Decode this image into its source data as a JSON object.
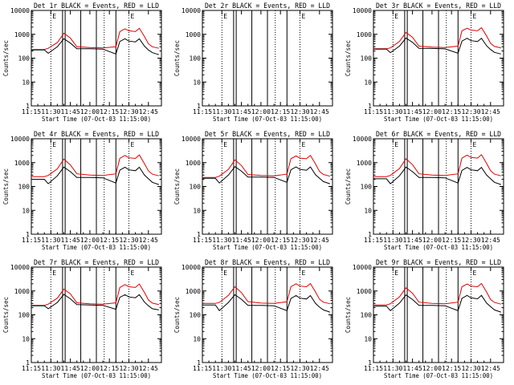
{
  "colors": {
    "events": "#000000",
    "lld": "#e00000",
    "axes": "#000000",
    "background": "#ffffff"
  },
  "chart_data": [
    {
      "type": "line",
      "title": "Det 1r BLACK = Events, RED = LLD",
      "xlabel": "Start Time (07-Oct-03 11:15:00)",
      "ylabel": "Counts/sec",
      "yscale": "log",
      "xlim": [
        "11:15",
        "12:55"
      ],
      "ylim": [
        1,
        10000
      ],
      "x_ticks": [
        "11:15",
        "11:30",
        "11:45",
        "12:00",
        "12:15",
        "12:30",
        "12:45"
      ],
      "y_ticks": [
        "1",
        "10",
        "100",
        "1000",
        "10000"
      ],
      "dotted_lines": [
        "11:30",
        "12:11",
        "12:30"
      ],
      "solid_lines": [
        "11:39",
        "11:41",
        "11:53",
        "12:05",
        "12:20"
      ],
      "flag_label": "E",
      "x": [
        "11:15",
        "11:25",
        "11:28",
        "11:35",
        "11:40",
        "11:45",
        "11:50",
        "12:00",
        "12:10",
        "12:20",
        "12:23",
        "12:27",
        "12:30",
        "12:35",
        "12:38",
        "12:42",
        "12:45",
        "12:48",
        "12:53"
      ],
      "series": [
        {
          "name": "LLD",
          "values": [
            230,
            230,
            260,
            450,
            1100,
            700,
            300,
            280,
            270,
            300,
            1300,
            1700,
            1400,
            1300,
            1800,
            800,
            400,
            300,
            260
          ]
        },
        {
          "name": "Events",
          "values": [
            220,
            220,
            160,
            300,
            650,
            430,
            250,
            250,
            240,
            150,
            500,
            650,
            520,
            480,
            650,
            320,
            220,
            170,
            140
          ]
        }
      ]
    },
    {
      "type": "line",
      "title": "Det 2r BLACK = Events, RED = LLD",
      "xlabel": "Start Time (07-Oct-03 11:15:00)",
      "ylabel": "Counts/sec",
      "yscale": "log",
      "xlim": [
        "11:15",
        "12:55"
      ],
      "ylim": [
        1,
        10000
      ],
      "x_ticks": [
        "11:15",
        "11:30",
        "11:45",
        "12:00",
        "12:15",
        "12:30",
        "12:45"
      ],
      "y_ticks": [
        "1",
        "10",
        "100",
        "1000",
        "10000"
      ],
      "dotted_lines": [
        "11:30",
        "12:11",
        "12:30"
      ],
      "solid_lines": [
        "11:39",
        "11:41",
        "11:53",
        "12:05",
        "12:20"
      ],
      "flag_label": "E",
      "x": [],
      "series": []
    },
    {
      "type": "line",
      "title": "Det 3r BLACK = Events, RED = LLD",
      "xlabel": "Start Time (07-Oct-03 11:15:00)",
      "ylabel": "Counts/sec",
      "yscale": "log",
      "xlim": [
        "11:15",
        "12:55"
      ],
      "ylim": [
        1,
        10000
      ],
      "x_ticks": [
        "11:15",
        "11:30",
        "11:45",
        "12:00",
        "12:15",
        "12:30",
        "12:45"
      ],
      "y_ticks": [
        "1",
        "10",
        "100",
        "1000",
        "10000"
      ],
      "dotted_lines": [
        "11:30",
        "12:11",
        "12:30"
      ],
      "solid_lines": [
        "11:39",
        "11:41",
        "11:53",
        "12:05",
        "12:20"
      ],
      "flag_label": "E",
      "x": [
        "11:15",
        "11:25",
        "11:28",
        "11:35",
        "11:40",
        "11:45",
        "11:50",
        "12:00",
        "12:10",
        "12:20",
        "12:23",
        "12:27",
        "12:30",
        "12:35",
        "12:38",
        "12:42",
        "12:45",
        "12:48",
        "12:53"
      ],
      "series": [
        {
          "name": "LLD",
          "values": [
            250,
            250,
            270,
            500,
            1200,
            750,
            320,
            290,
            280,
            320,
            1400,
            1800,
            1500,
            1400,
            1900,
            850,
            420,
            310,
            270
          ]
        },
        {
          "name": "Events",
          "values": [
            240,
            240,
            170,
            320,
            700,
            460,
            260,
            255,
            245,
            160,
            520,
            680,
            540,
            500,
            680,
            330,
            230,
            175,
            150
          ]
        }
      ]
    },
    {
      "type": "line",
      "title": "Det 4r BLACK = Events, RED = LLD",
      "xlabel": "Start Time (07-Oct-03 11:15:00)",
      "ylabel": "Counts/sec",
      "yscale": "log",
      "xlim": [
        "11:15",
        "12:55"
      ],
      "ylim": [
        1,
        10000
      ],
      "x_ticks": [
        "11:15",
        "11:30",
        "11:45",
        "12:00",
        "12:15",
        "12:30",
        "12:45"
      ],
      "y_ticks": [
        "1",
        "10",
        "100",
        "1000",
        "10000"
      ],
      "dotted_lines": [
        "11:30",
        "12:11",
        "12:30"
      ],
      "solid_lines": [
        "11:39",
        "11:41",
        "11:53",
        "12:05",
        "12:20"
      ],
      "flag_label": "E",
      "x": [
        "11:15",
        "11:25",
        "11:28",
        "11:35",
        "11:40",
        "11:45",
        "11:50",
        "12:00",
        "12:10",
        "12:20",
        "12:23",
        "12:27",
        "12:30",
        "12:35",
        "12:38",
        "12:42",
        "12:45",
        "12:48",
        "12:53"
      ],
      "series": [
        {
          "name": "LLD",
          "values": [
            260,
            260,
            290,
            550,
            1400,
            800,
            340,
            300,
            290,
            340,
            1500,
            2000,
            1600,
            1500,
            2100,
            900,
            450,
            330,
            280
          ]
        },
        {
          "name": "Events",
          "values": [
            200,
            200,
            130,
            280,
            650,
            420,
            240,
            240,
            230,
            140,
            480,
            640,
            500,
            460,
            640,
            300,
            210,
            150,
            120
          ]
        }
      ]
    },
    {
      "type": "line",
      "title": "Det 5r BLACK = Events, RED = LLD",
      "xlabel": "Start Time (07-Oct-03 11:15:00)",
      "ylabel": "Counts/sec",
      "yscale": "log",
      "xlim": [
        "11:15",
        "12:55"
      ],
      "ylim": [
        1,
        10000
      ],
      "x_ticks": [
        "11:15",
        "11:30",
        "11:45",
        "12:00",
        "12:15",
        "12:30",
        "12:45"
      ],
      "y_ticks": [
        "1",
        "10",
        "100",
        "1000",
        "10000"
      ],
      "dotted_lines": [
        "11:30",
        "12:11",
        "12:30"
      ],
      "solid_lines": [
        "11:39",
        "11:41",
        "11:53",
        "12:05",
        "12:20"
      ],
      "flag_label": "E",
      "x": [
        "11:15",
        "11:25",
        "11:28",
        "11:35",
        "11:40",
        "11:45",
        "11:50",
        "12:00",
        "12:10",
        "12:20",
        "12:23",
        "12:27",
        "12:30",
        "12:35",
        "12:38",
        "12:42",
        "12:45",
        "12:48",
        "12:53"
      ],
      "series": [
        {
          "name": "LLD",
          "values": [
            240,
            240,
            270,
            520,
            1300,
            760,
            320,
            290,
            280,
            330,
            1450,
            1900,
            1550,
            1450,
            2000,
            870,
            430,
            320,
            270
          ]
        },
        {
          "name": "Events",
          "values": [
            220,
            220,
            140,
            300,
            680,
            440,
            250,
            250,
            240,
            150,
            500,
            660,
            520,
            480,
            660,
            310,
            220,
            160,
            130
          ]
        }
      ]
    },
    {
      "type": "line",
      "title": "Det 6r BLACK = Events, RED = LLD",
      "xlabel": "Start Time (07-Oct-03 11:15:00)",
      "ylabel": "Counts/sec",
      "yscale": "log",
      "xlim": [
        "11:15",
        "12:55"
      ],
      "ylim": [
        1,
        10000
      ],
      "x_ticks": [
        "11:15",
        "11:30",
        "11:45",
        "12:00",
        "12:15",
        "12:30",
        "12:45"
      ],
      "y_ticks": [
        "1",
        "10",
        "100",
        "1000",
        "10000"
      ],
      "dotted_lines": [
        "11:30",
        "12:11",
        "12:30"
      ],
      "solid_lines": [
        "11:39",
        "11:41",
        "11:53",
        "12:05",
        "12:20"
      ],
      "flag_label": "E",
      "x": [
        "11:15",
        "11:25",
        "11:28",
        "11:35",
        "11:40",
        "11:45",
        "11:50",
        "12:00",
        "12:10",
        "12:20",
        "12:23",
        "12:27",
        "12:30",
        "12:35",
        "12:38",
        "12:42",
        "12:45",
        "12:48",
        "12:53"
      ],
      "series": [
        {
          "name": "LLD",
          "values": [
            260,
            260,
            290,
            560,
            1450,
            820,
            340,
            300,
            290,
            340,
            1550,
            2050,
            1650,
            1550,
            2150,
            920,
            460,
            330,
            280
          ]
        },
        {
          "name": "Events",
          "values": [
            210,
            210,
            130,
            280,
            650,
            420,
            240,
            240,
            230,
            140,
            470,
            630,
            500,
            460,
            630,
            300,
            210,
            150,
            120
          ]
        }
      ]
    },
    {
      "type": "line",
      "title": "Det 7r BLACK = Events, RED = LLD",
      "xlabel": "Start Time (07-Oct-03 11:15:00)",
      "ylabel": "Counts/sec",
      "yscale": "log",
      "xlim": [
        "11:15",
        "12:55"
      ],
      "ylim": [
        1,
        10000
      ],
      "x_ticks": [
        "11:15",
        "11:30",
        "11:45",
        "12:00",
        "12:15",
        "12:30",
        "12:45"
      ],
      "y_ticks": [
        "1",
        "10",
        "100",
        "1000",
        "10000"
      ],
      "dotted_lines": [
        "11:30",
        "12:11",
        "12:30"
      ],
      "solid_lines": [
        "11:39",
        "11:41",
        "11:53",
        "12:05",
        "12:20"
      ],
      "flag_label": "E",
      "x": [
        "11:15",
        "11:25",
        "11:28",
        "11:35",
        "11:40",
        "11:45",
        "11:50",
        "12:00",
        "12:10",
        "12:20",
        "12:23",
        "12:27",
        "12:30",
        "12:35",
        "12:38",
        "12:42",
        "12:45",
        "12:48",
        "12:53"
      ],
      "series": [
        {
          "name": "LLD",
          "values": [
            250,
            250,
            280,
            500,
            1200,
            760,
            320,
            290,
            280,
            320,
            1400,
            1850,
            1500,
            1400,
            1950,
            850,
            420,
            310,
            270
          ]
        },
        {
          "name": "Events",
          "values": [
            240,
            240,
            180,
            330,
            720,
            470,
            270,
            260,
            250,
            170,
            540,
            700,
            560,
            520,
            700,
            340,
            240,
            180,
            160
          ]
        }
      ]
    },
    {
      "type": "line",
      "title": "Det 8r BLACK = Events, RED = LLD",
      "xlabel": "Start Time (07-Oct-03 11:15:00)",
      "ylabel": "Counts/sec",
      "yscale": "log",
      "xlim": [
        "11:15",
        "12:55"
      ],
      "ylim": [
        1,
        10000
      ],
      "x_ticks": [
        "11:15",
        "11:30",
        "11:45",
        "12:00",
        "12:15",
        "12:30",
        "12:45"
      ],
      "y_ticks": [
        "1",
        "10",
        "100",
        "1000",
        "10000"
      ],
      "dotted_lines": [
        "11:30",
        "12:11",
        "12:30"
      ],
      "solid_lines": [
        "11:39",
        "11:41",
        "11:53",
        "12:05",
        "12:20"
      ],
      "flag_label": "E",
      "x": [
        "11:15",
        "11:25",
        "11:28",
        "11:35",
        "11:40",
        "11:45",
        "11:50",
        "12:00",
        "12:10",
        "12:20",
        "12:23",
        "12:27",
        "12:30",
        "12:35",
        "12:38",
        "12:42",
        "12:45",
        "12:48",
        "12:53"
      ],
      "series": [
        {
          "name": "LLD",
          "values": [
            300,
            300,
            330,
            650,
            1500,
            850,
            360,
            310,
            300,
            350,
            1500,
            2000,
            1600,
            1500,
            2050,
            900,
            450,
            340,
            290
          ]
        },
        {
          "name": "Events",
          "values": [
            260,
            260,
            150,
            330,
            700,
            450,
            250,
            250,
            240,
            150,
            480,
            640,
            500,
            460,
            640,
            300,
            210,
            160,
            130
          ]
        }
      ]
    },
    {
      "type": "line",
      "title": "Det 9r BLACK = Events, RED = LLD",
      "xlabel": "Start Time (07-Oct-03 11:15:00)",
      "ylabel": "Counts/sec",
      "yscale": "log",
      "xlim": [
        "11:15",
        "12:55"
      ],
      "ylim": [
        1,
        10000
      ],
      "x_ticks": [
        "11:15",
        "11:30",
        "11:45",
        "12:00",
        "12:15",
        "12:30",
        "12:45"
      ],
      "y_ticks": [
        "1",
        "10",
        "100",
        "1000",
        "10000"
      ],
      "dotted_lines": [
        "11:30",
        "12:11",
        "12:30"
      ],
      "solid_lines": [
        "11:39",
        "11:41",
        "11:53",
        "12:05",
        "12:20"
      ],
      "flag_label": "E",
      "x": [
        "11:15",
        "11:25",
        "11:28",
        "11:35",
        "11:40",
        "11:45",
        "11:50",
        "12:00",
        "12:10",
        "12:20",
        "12:23",
        "12:27",
        "12:30",
        "12:35",
        "12:38",
        "12:42",
        "12:45",
        "12:48",
        "12:53"
      ],
      "series": [
        {
          "name": "LLD",
          "values": [
            260,
            260,
            290,
            560,
            1350,
            800,
            340,
            300,
            290,
            340,
            1500,
            1950,
            1600,
            1500,
            2050,
            900,
            440,
            330,
            280
          ]
        },
        {
          "name": "Events",
          "values": [
            230,
            230,
            150,
            310,
            680,
            440,
            250,
            250,
            240,
            150,
            490,
            650,
            510,
            470,
            650,
            310,
            220,
            160,
            130
          ]
        }
      ]
    }
  ]
}
